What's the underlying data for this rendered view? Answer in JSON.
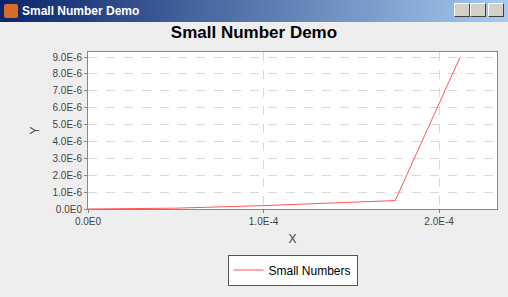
{
  "chart_data": {
    "type": "line",
    "title": "Small Number Demo",
    "x_label": "X",
    "y_label": "Y",
    "series": [
      {
        "name": "Small Numbers",
        "color": "#ff5555",
        "x": [
          0.0,
          5e-05,
          0.0001,
          0.000175,
          0.000212
        ],
        "values": [
          0.0,
          5e-08,
          2e-07,
          5e-07,
          9e-06
        ]
      }
    ],
    "xlim": [
      0.0,
      0.000233
    ],
    "xticks": [
      {
        "value": 0.0,
        "label": "0.0E0"
      },
      {
        "value": 0.0001,
        "label": "1.0E-4"
      },
      {
        "value": 0.0002,
        "label": "2.0E-4"
      }
    ],
    "ylim": [
      0.0,
      9.3e-06
    ],
    "yticks": [
      {
        "value": 0.0,
        "label": "0.0E0"
      },
      {
        "value": 1e-06,
        "label": "1.0E-6"
      },
      {
        "value": 2e-06,
        "label": "2.0E-6"
      },
      {
        "value": 3e-06,
        "label": "3.0E-6"
      },
      {
        "value": 4e-06,
        "label": "4.0E-6"
      },
      {
        "value": 5e-06,
        "label": "5.0E-6"
      },
      {
        "value": 6e-06,
        "label": "6.0E-6"
      },
      {
        "value": 7e-06,
        "label": "7.0E-6"
      },
      {
        "value": 8e-06,
        "label": "8.0E-6"
      },
      {
        "value": 9e-06,
        "label": "9.0E-6"
      }
    ],
    "grid": true,
    "legend": "bottom"
  }
}
